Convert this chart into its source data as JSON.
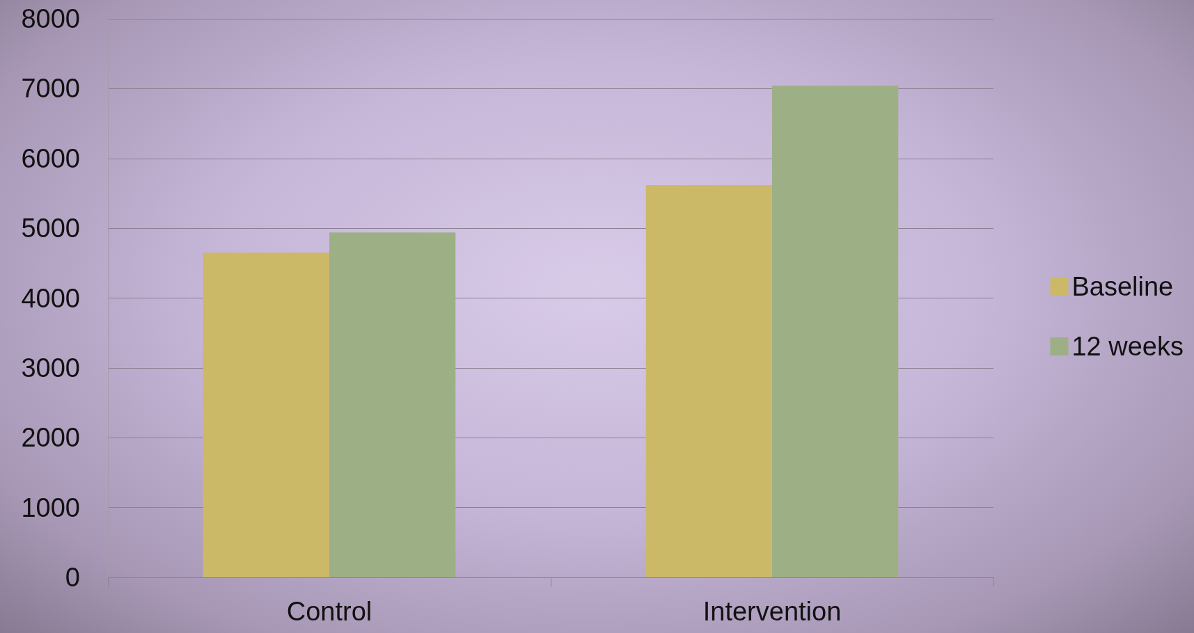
{
  "chart_data": {
    "type": "bar",
    "categories": [
      "Control",
      "Intervention"
    ],
    "series": [
      {
        "name": "Baseline",
        "color": "#ccb967",
        "values": [
          4650,
          5620
        ]
      },
      {
        "name": "12 weeks",
        "color": "#9db085",
        "values": [
          4940,
          7040
        ]
      }
    ],
    "ylim": [
      0,
      8000
    ],
    "yticks": [
      0,
      1000,
      2000,
      3000,
      4000,
      5000,
      6000,
      7000,
      8000
    ],
    "grid": "y",
    "legend": "right"
  }
}
